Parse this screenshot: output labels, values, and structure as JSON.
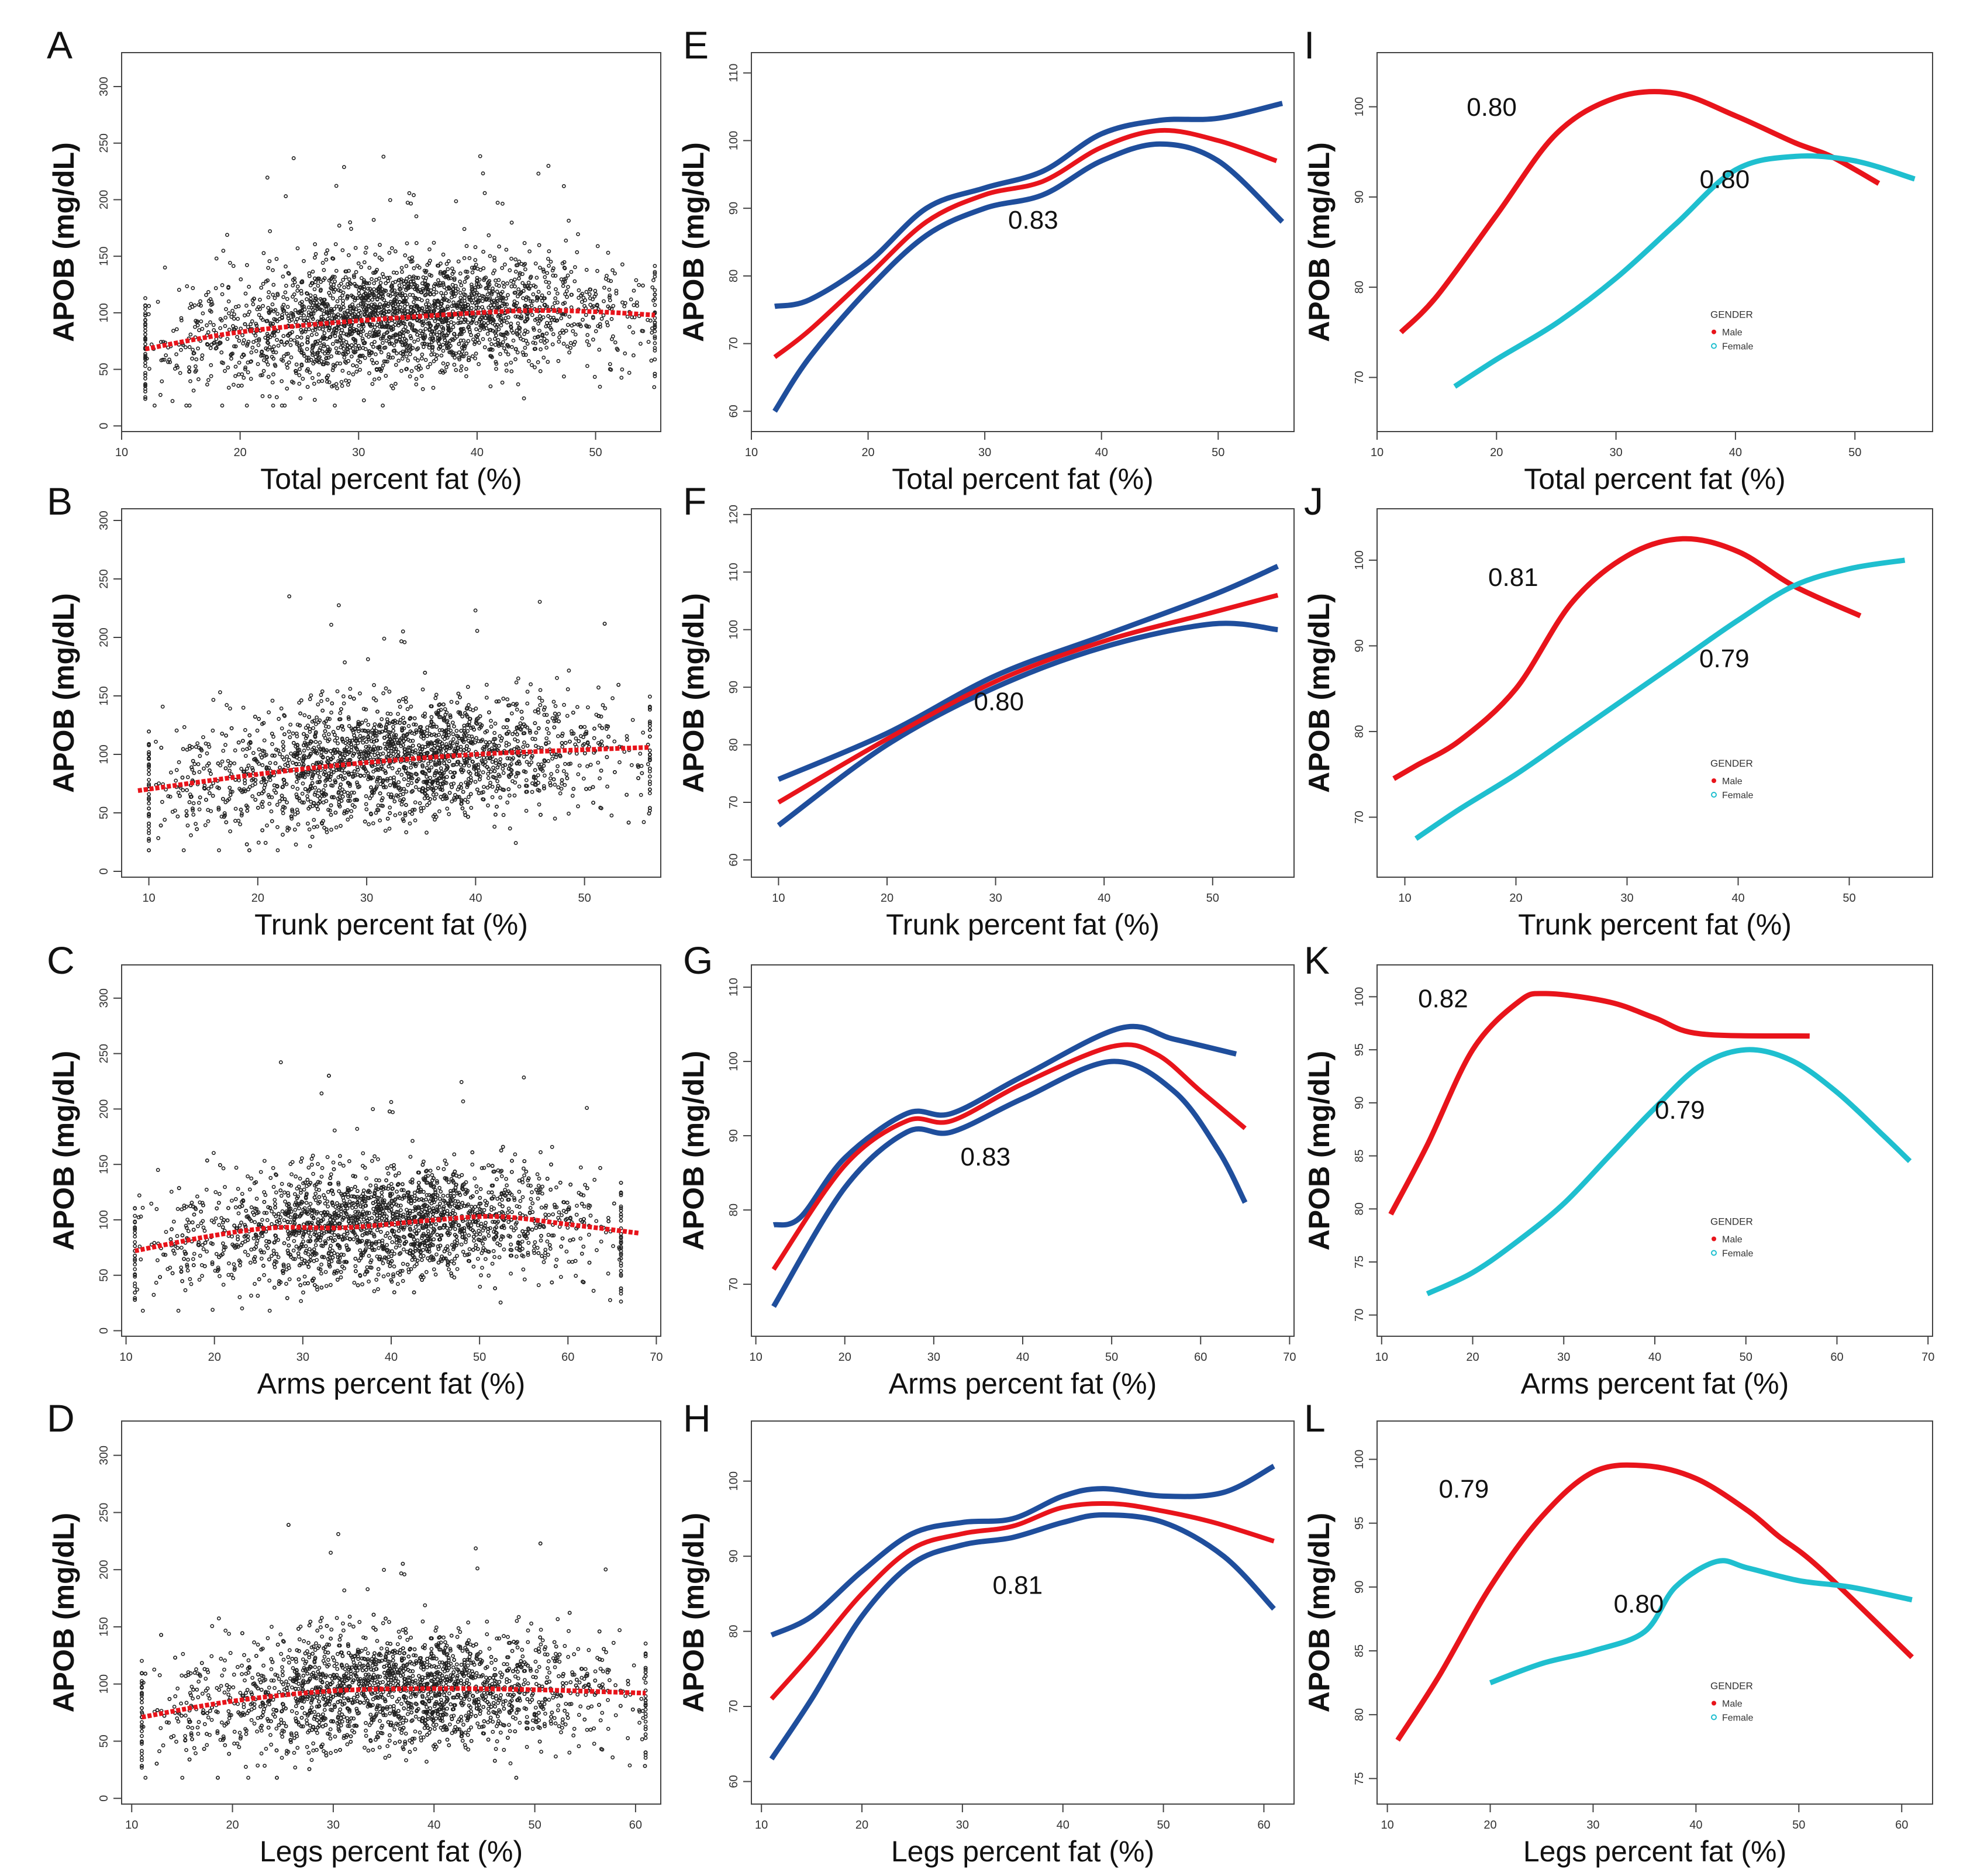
{
  "figure": {
    "ylabel": "APOB (mg/dL)",
    "legend_title": "GENDER",
    "legend_male": "Male",
    "legend_female": "Female"
  },
  "colors": {
    "fit": "#e8141b",
    "ci": "#1f4e9c",
    "male": "#e8141b",
    "female": "#1fbfcf",
    "scatter": "#222222",
    "axis": "#444444"
  },
  "chart_data": [
    {
      "panel": "A",
      "type": "scatter",
      "xlabel": "Total percent fat (%)",
      "ylabel": "APOB (mg/dL)",
      "xlim": [
        10,
        55.5
      ],
      "xticks": [
        10,
        20,
        30,
        40,
        50
      ],
      "ylim": [
        -5,
        330
      ],
      "yticks": [
        0,
        50,
        100,
        150,
        200,
        250,
        300
      ],
      "scatter": {
        "x_range": [
          12,
          55
        ],
        "y_mean": 90,
        "y_sd": 25,
        "n": 2600
      },
      "fit": {
        "x": [
          12,
          20,
          30,
          40,
          45,
          50,
          55
        ],
        "y": [
          68,
          83,
          93,
          100,
          102,
          101,
          98
        ]
      }
    },
    {
      "panel": "B",
      "type": "scatter",
      "xlabel": "Trunk percent fat (%)",
      "ylabel": "APOB (mg/dL)",
      "xlim": [
        7.5,
        57
      ],
      "xticks": [
        10,
        20,
        30,
        40,
        50
      ],
      "ylim": [
        -5,
        310
      ],
      "yticks": [
        0,
        50,
        100,
        150,
        200,
        250,
        300
      ],
      "scatter": {
        "x_range": [
          10,
          56
        ],
        "y_mean": 92,
        "y_sd": 25,
        "n": 2600
      },
      "fit": {
        "x": [
          9,
          20,
          30,
          40,
          50,
          56
        ],
        "y": [
          69,
          83,
          93,
          100,
          104,
          106
        ]
      }
    },
    {
      "panel": "C",
      "type": "scatter",
      "xlabel": "Arms percent fat (%)",
      "ylabel": "APOB (mg/dL)",
      "xlim": [
        9.5,
        70.5
      ],
      "xticks": [
        10,
        20,
        30,
        40,
        50,
        60,
        70
      ],
      "ylim": [
        -5,
        330
      ],
      "yticks": [
        0,
        50,
        100,
        150,
        200,
        250,
        300
      ],
      "scatter": {
        "x_range": [
          11,
          66
        ],
        "y_mean": 90,
        "y_sd": 25,
        "n": 2600
      },
      "fit": {
        "x": [
          11,
          20,
          27,
          35,
          45,
          52,
          60,
          68
        ],
        "y": [
          72,
          86,
          93,
          93,
          100,
          103,
          96,
          88
        ]
      }
    },
    {
      "panel": "D",
      "type": "scatter",
      "xlabel": "Legs percent fat (%)",
      "ylabel": "APOB (mg/dL)",
      "xlim": [
        9,
        62.5
      ],
      "xticks": [
        10,
        20,
        30,
        40,
        50,
        60
      ],
      "ylim": [
        -5,
        330
      ],
      "yticks": [
        0,
        50,
        100,
        150,
        200,
        250,
        300
      ],
      "scatter": {
        "x_range": [
          11,
          61
        ],
        "y_mean": 90,
        "y_sd": 25,
        "n": 2600
      },
      "fit": {
        "x": [
          11,
          20,
          30,
          40,
          50,
          61
        ],
        "y": [
          71,
          85,
          94,
          96,
          95,
          92
        ]
      }
    },
    {
      "panel": "E",
      "type": "line",
      "xlabel": "Total percent fat (%)",
      "ylabel": "APOB (mg/dL)",
      "annotation": "0.83",
      "ann_at": [
        32,
        87
      ],
      "xlim": [
        10,
        56.5
      ],
      "xticks": [
        10,
        20,
        30,
        40,
        50
      ],
      "ylim": [
        57,
        113
      ],
      "yticks": [
        60,
        70,
        80,
        90,
        100,
        110
      ],
      "fit": {
        "x": [
          12,
          15,
          20,
          25,
          30,
          35,
          40,
          45,
          50,
          55
        ],
        "y": [
          68,
          72,
          80,
          88,
          92,
          94,
          99,
          101.5,
          100,
          97
        ]
      },
      "upper": {
        "x": [
          12,
          15,
          20,
          25,
          30,
          35,
          40,
          45,
          50,
          55.5
        ],
        "y": [
          75.5,
          76.5,
          82,
          90,
          93,
          95.5,
          101,
          103,
          103.3,
          105.5
        ]
      },
      "lower": {
        "x": [
          12,
          15,
          20,
          25,
          30,
          35,
          40,
          45,
          50,
          55.5
        ],
        "y": [
          60,
          68,
          78,
          86,
          90,
          92,
          97,
          99.5,
          97,
          88
        ]
      }
    },
    {
      "panel": "F",
      "type": "line",
      "xlabel": "Trunk percent fat (%)",
      "ylabel": "APOB (mg/dL)",
      "annotation": "0.80",
      "ann_at": [
        28,
        86
      ],
      "xlim": [
        7.5,
        57.5
      ],
      "xticks": [
        10,
        20,
        30,
        40,
        50
      ],
      "ylim": [
        57,
        121
      ],
      "yticks": [
        60,
        70,
        80,
        90,
        100,
        110,
        120
      ],
      "fit": {
        "x": [
          10,
          20,
          30,
          40,
          50,
          56
        ],
        "y": [
          70,
          81,
          91,
          98,
          103,
          106
        ]
      },
      "upper": {
        "x": [
          10,
          20,
          30,
          40,
          50,
          56
        ],
        "y": [
          74,
          82,
          92,
          99,
          106,
          111
        ]
      },
      "lower": {
        "x": [
          10,
          20,
          30,
          40,
          50,
          56
        ],
        "y": [
          66,
          80,
          90,
          97,
          101,
          100
        ]
      }
    },
    {
      "panel": "G",
      "type": "line",
      "xlabel": "Arms percent fat (%)",
      "ylabel": "APOB (mg/dL)",
      "annotation": "0.83",
      "ann_at": [
        33,
        86
      ],
      "xlim": [
        9.5,
        70.5
      ],
      "xticks": [
        10,
        20,
        30,
        40,
        50,
        60,
        70
      ],
      "ylim": [
        63,
        113
      ],
      "yticks": [
        70,
        80,
        90,
        100,
        110
      ],
      "fit": {
        "x": [
          12,
          20,
          27,
          32,
          40,
          50,
          55,
          60,
          65
        ],
        "y": [
          72,
          86,
          92,
          92,
          97,
          102,
          101,
          96,
          91
        ]
      },
      "upper": {
        "x": [
          12,
          15,
          20,
          27,
          32,
          40,
          51,
          57,
          64
        ],
        "y": [
          78,
          79,
          87,
          93,
          93,
          98,
          104.5,
          103,
          101
        ]
      },
      "lower": {
        "x": [
          12,
          20,
          27,
          32,
          40,
          50,
          57,
          62,
          65
        ],
        "y": [
          67,
          83,
          90.5,
          90.5,
          95,
          100,
          96,
          88,
          81
        ]
      }
    },
    {
      "panel": "H",
      "type": "line",
      "xlabel": "Legs percent fat (%)",
      "ylabel": "APOB (mg/dL)",
      "annotation": "0.81",
      "ann_at": [
        33,
        85
      ],
      "xlim": [
        9,
        63
      ],
      "xticks": [
        10,
        20,
        30,
        40,
        50,
        60
      ],
      "ylim": [
        57,
        108
      ],
      "yticks": [
        60,
        70,
        80,
        90,
        100
      ],
      "fit": {
        "x": [
          11,
          15,
          20,
          25,
          30,
          35,
          40,
          45,
          50,
          55,
          61
        ],
        "y": [
          71,
          77,
          85,
          91,
          93,
          94,
          96.5,
          97,
          96,
          94.5,
          92
        ]
      },
      "upper": {
        "x": [
          11,
          15,
          20,
          25,
          30,
          35,
          40,
          44,
          50,
          56,
          61
        ],
        "y": [
          79.5,
          82,
          88,
          93,
          94.5,
          95,
          98,
          99,
          98,
          98.5,
          102
        ]
      },
      "lower": {
        "x": [
          11,
          15,
          20,
          25,
          30,
          35,
          40,
          44,
          50,
          56,
          61
        ],
        "y": [
          63,
          71,
          82,
          89,
          91.5,
          92.5,
          94.5,
          95.5,
          94.5,
          90,
          83
        ]
      }
    },
    {
      "panel": "I",
      "type": "line",
      "xlabel": "Total percent fat (%)",
      "ylabel": "APOB (mg/dL)",
      "legend": true,
      "xlim": [
        10,
        56.5
      ],
      "xticks": [
        10,
        20,
        30,
        40,
        50
      ],
      "ylim": [
        64,
        106
      ],
      "yticks": [
        70,
        80,
        90,
        100
      ],
      "male": {
        "label": "0.80",
        "ann_at": [
          17.5,
          99
        ],
        "x": [
          12,
          15,
          20,
          25,
          30,
          35,
          40,
          45,
          48,
          52
        ],
        "y": [
          75,
          79,
          88,
          97,
          101,
          101.5,
          99,
          96,
          94.5,
          91.5
        ]
      },
      "female": {
        "label": "0.80",
        "ann_at": [
          37,
          91
        ],
        "x": [
          16.5,
          20,
          25,
          30,
          35,
          40,
          45,
          50,
          55
        ],
        "y": [
          69,
          72,
          76,
          81,
          87,
          93,
          94.5,
          94,
          92
        ]
      }
    },
    {
      "panel": "J",
      "type": "line",
      "xlabel": "Trunk percent fat (%)",
      "ylabel": "APOB (mg/dL)",
      "legend": true,
      "xlim": [
        7.5,
        57.5
      ],
      "xticks": [
        10,
        20,
        30,
        40,
        50
      ],
      "ylim": [
        63,
        106
      ],
      "yticks": [
        70,
        80,
        90,
        100
      ],
      "male": {
        "label": "0.81",
        "ann_at": [
          17.5,
          97
        ],
        "x": [
          9,
          11,
          15,
          20,
          25,
          30,
          35,
          40,
          45,
          51
        ],
        "y": [
          74.5,
          76,
          79,
          85,
          95,
          100.5,
          102.5,
          101,
          97,
          93.5
        ]
      },
      "female": {
        "label": "0.79",
        "ann_at": [
          36.5,
          87.5
        ],
        "x": [
          11,
          15,
          20,
          25,
          30,
          35,
          40,
          45,
          50,
          55
        ],
        "y": [
          67.5,
          71,
          75,
          79.5,
          84,
          88.5,
          93,
          97,
          99,
          100
        ]
      }
    },
    {
      "panel": "K",
      "type": "line",
      "xlabel": "Arms percent fat (%)",
      "ylabel": "APOB (mg/dL)",
      "legend": true,
      "xlim": [
        9.5,
        70.5
      ],
      "xticks": [
        10,
        20,
        30,
        40,
        50,
        60,
        70
      ],
      "ylim": [
        68,
        103
      ],
      "yticks": [
        70,
        75,
        80,
        85,
        90,
        95,
        100
      ],
      "male": {
        "label": "0.82",
        "ann_at": [
          14,
          99
        ],
        "x": [
          11,
          15,
          20,
          25,
          28,
          35,
          40,
          45,
          57
        ],
        "y": [
          79.5,
          86,
          95,
          99.5,
          100.3,
          99.5,
          98,
          96.5,
          96.3
        ]
      },
      "female": {
        "label": "0.79",
        "ann_at": [
          40,
          88.5
        ],
        "x": [
          15,
          20,
          25,
          30,
          35,
          40,
          45,
          50,
          55,
          60,
          65,
          68
        ],
        "y": [
          72,
          74,
          77,
          80.5,
          85,
          89.5,
          93.5,
          95,
          94,
          91,
          87,
          84.5
        ]
      }
    },
    {
      "panel": "L",
      "type": "line",
      "xlabel": "Legs percent fat (%)",
      "ylabel": "APOB (mg/dL)",
      "legend": true,
      "xlim": [
        9,
        63
      ],
      "xticks": [
        10,
        20,
        30,
        40,
        50,
        60
      ],
      "ylim": [
        73,
        103
      ],
      "yticks": [
        75,
        80,
        85,
        90,
        95,
        100
      ],
      "male": {
        "label": "0.79",
        "ann_at": [
          15,
          97
        ],
        "x": [
          11,
          15,
          20,
          25,
          30,
          35,
          40,
          45,
          48,
          52,
          61
        ],
        "y": [
          78,
          83,
          90,
          95.5,
          99,
          99.5,
          98.5,
          96,
          94,
          91.5,
          84.5
        ]
      },
      "female": {
        "label": "0.80",
        "ann_at": [
          32,
          88
        ],
        "x": [
          20,
          25,
          30,
          35,
          38,
          42,
          45,
          50,
          55,
          61
        ],
        "y": [
          82.5,
          84,
          85,
          86.5,
          90,
          92,
          91.5,
          90.5,
          90,
          89
        ]
      }
    }
  ]
}
